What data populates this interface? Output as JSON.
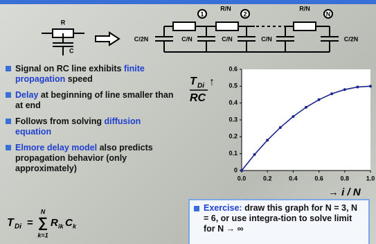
{
  "circuit_labels": [
    "R",
    "C",
    "C/2N",
    "C/N",
    "C/N",
    "C/N",
    "C/2N",
    "R/N",
    "R/N"
  ],
  "nodes": [
    "1",
    "2",
    "N"
  ],
  "bullets": [
    [
      {
        "text": "Signal on RC line exhibits ",
        "color": "#111111"
      },
      {
        "text": "finite propagation",
        "color": "#1f3fd0"
      },
      {
        "text": " speed",
        "color": "#111111"
      }
    ],
    [
      {
        "text": "Delay",
        "color": "#1f3fd0"
      },
      {
        "text": " at beginning of line smaller than at end",
        "color": "#111111"
      }
    ],
    [
      {
        "text": "Follows from solving ",
        "color": "#111111"
      },
      {
        "text": "diffusion equation",
        "color": "#1f3fd0"
      }
    ],
    [
      {
        "text": "Elmore delay model",
        "color": "#1f3fd0"
      },
      {
        "text": " also predicts propagation behavior (only approximately)",
        "color": "#111111"
      }
    ]
  ],
  "formula": {
    "lhs": "T",
    "lhs_sub": "Di",
    "eq": "=",
    "sum": "∑",
    "upper": "N",
    "lower": "k=1",
    "term1": "R",
    "term1_sub": "ik",
    "term2": "C",
    "term2_sub": "k"
  },
  "exercise": {
    "head": "Exercise:",
    "body": "draw this graph for N = 3, N = 6, or use integra-tion to solve limit for N → ∞"
  },
  "chart_data": {
    "type": "line",
    "ylabel": {
      "top": "T",
      "top_sub": "Di",
      "bottom": "RC",
      "arrow": "↑"
    },
    "xlabel": "→ i / N",
    "x": [
      0,
      0.1,
      0.2,
      0.3,
      0.4,
      0.5,
      0.6,
      0.7,
      0.8,
      0.9,
      1.0
    ],
    "values": [
      0,
      0.095,
      0.18,
      0.255,
      0.32,
      0.375,
      0.42,
      0.455,
      0.48,
      0.495,
      0.5
    ],
    "color": "#1a2590",
    "xlim": [
      0,
      1
    ],
    "ylim": [
      0,
      0.6
    ],
    "xticks": [
      {
        "value": 0,
        "label": "0.0"
      },
      0.2,
      0.4,
      0.6,
      0.8,
      {
        "value": 1,
        "label": "1.0"
      }
    ],
    "yticks": [
      0,
      0.1,
      0.2,
      0.3,
      0.4,
      0.5,
      0.6
    ],
    "grid": false
  }
}
